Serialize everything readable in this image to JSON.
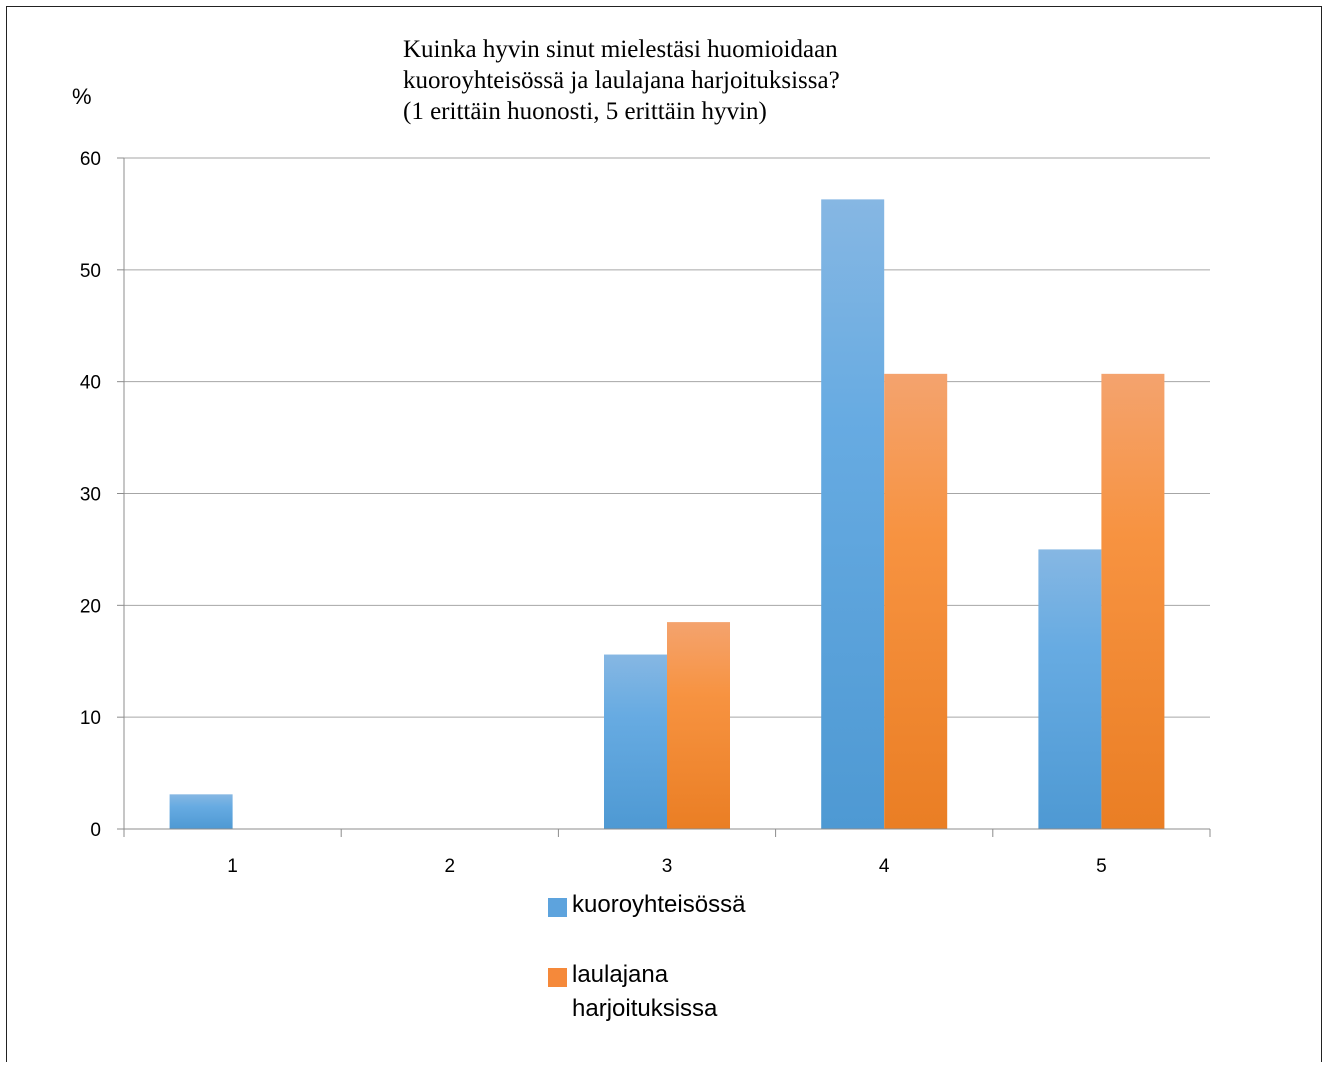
{
  "chart_data": {
    "type": "bar",
    "title_lines": [
      "Kuinka hyvin sinut mielestäsi huomioidaan",
      "kuoroyhteisössä ja laulajana harjoituksissa?",
      "(1 erittäin huonosti, 5 erittäin hyvin)"
    ],
    "ylabel": "%",
    "xlabel": "",
    "categories": [
      "1",
      "2",
      "3",
      "4",
      "5"
    ],
    "ylim": [
      0,
      60
    ],
    "yticks": [
      "0",
      "10",
      "20",
      "30",
      "40",
      "50",
      "60"
    ],
    "grid": true,
    "legend_position": "bottom",
    "series": [
      {
        "name": "kuoroyhteisössä",
        "values": [
          3.1,
          0,
          15.6,
          56.3,
          25.0
        ],
        "color": "#5DA3DD"
      },
      {
        "name": "laulajana harjoituksissa",
        "values": [
          0,
          0,
          18.5,
          40.7,
          40.7
        ],
        "color": "#F5893A"
      }
    ]
  },
  "legend": {
    "items": [
      {
        "lines": [
          "kuoroyhteisössä"
        ]
      },
      {
        "lines": [
          "laulajana",
          "harjoituksissa"
        ]
      }
    ]
  }
}
